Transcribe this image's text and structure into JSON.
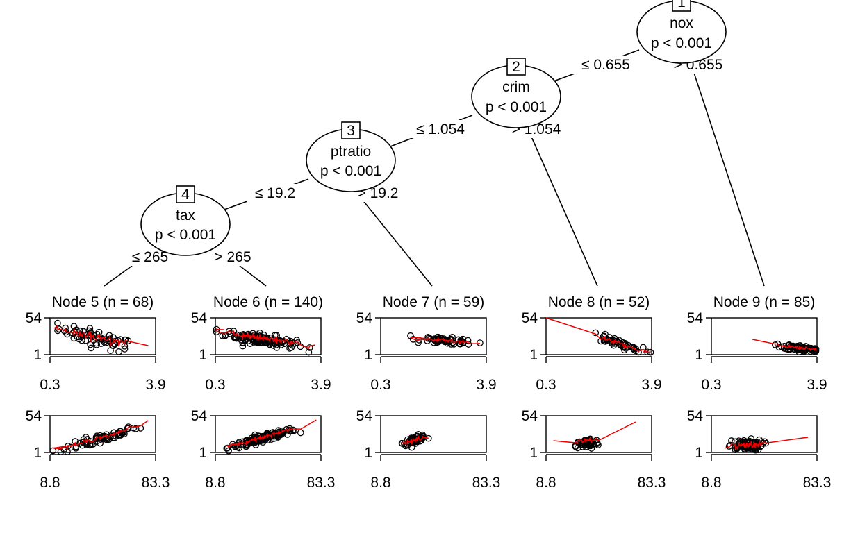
{
  "nodes": [
    {
      "id": "1",
      "variable": "nox",
      "p": "p < 0.001"
    },
    {
      "id": "2",
      "variable": "crim",
      "p": "p < 0.001"
    },
    {
      "id": "3",
      "variable": "ptratio",
      "p": "p < 0.001"
    },
    {
      "id": "4",
      "variable": "tax",
      "p": "p < 0.001"
    }
  ],
  "edges": [
    {
      "le": "≤ 0.655",
      "gt": "> 0.655"
    },
    {
      "le": "≤ 1.054",
      "gt": "> 1.054"
    },
    {
      "le": "≤ 19.2",
      "gt": "> 19.2"
    },
    {
      "le": "≤ 265",
      "gt": "> 265"
    }
  ],
  "chart_data": {
    "type": "scatter",
    "panel_axes": {
      "top": {
        "xlim": [
          0.3,
          3.9
        ],
        "ylim": [
          1,
          54
        ],
        "xticks": [
          "0.3",
          "3.9"
        ],
        "yticks": [
          "54",
          "1"
        ]
      },
      "bottom": {
        "xlim": [
          8.8,
          83.3
        ],
        "ylim": [
          1,
          54
        ],
        "xticks": [
          "8.8",
          "83.3"
        ],
        "yticks": [
          "54",
          "1"
        ]
      }
    },
    "leaves": [
      {
        "title": "Node 5 (n = 68)",
        "top": {
          "cx": 1.9,
          "sx": 0.65,
          "slope": -11.0,
          "icpt": 45,
          "jit": 6,
          "n": 68,
          "fit": [
            [
              0.45,
              39
            ],
            [
              3.65,
              14
            ]
          ]
        },
        "bottom": {
          "cx": 43,
          "sx": 14,
          "slope": 0.62,
          "icpt": -7,
          "jit": 3.5,
          "n": 68,
          "fit": [
            [
              26,
              12
            ],
            [
              78,
              47
            ]
          ]
        }
      },
      {
        "title": "Node 6 (n = 140)",
        "top": {
          "cx": 1.85,
          "sx": 0.6,
          "slope": -6.5,
          "icpt": 35,
          "jit": 4,
          "n": 140,
          "fit": [
            [
              0.6,
              37
            ],
            [
              3.7,
              15
            ]
          ]
        },
        "bottom": {
          "cx": 42,
          "sx": 12,
          "slope": 0.55,
          "icpt": -2,
          "jit": 2.5,
          "n": 140,
          "fit": [
            [
              28,
              15
            ],
            [
              80,
              48
            ]
          ]
        }
      },
      {
        "title": "Node 7 (n = 59)",
        "top": {
          "cx": 2.6,
          "sx": 0.45,
          "slope": -4.0,
          "icpt": 31,
          "jit": 2.5,
          "n": 59,
          "fit": [
            [
              1.9,
              24
            ],
            [
              3.6,
              16
            ]
          ]
        },
        "bottom": {
          "cx": 33,
          "sx": 4,
          "slope": 0.6,
          "icpt": 0,
          "jit": 2.5,
          "n": 59,
          "fit": [
            [
              27,
              16
            ],
            [
              40,
              22
            ]
          ]
        }
      },
      {
        "title": "Node 8 (n = 52)",
        "top": {
          "cx": 2.7,
          "sx": 0.45,
          "slope": -14.0,
          "icpt": 56,
          "jit": 3,
          "n": 52,
          "fit": [
            [
              0.3,
              54
            ],
            [
              3.6,
              5
            ]
          ]
        },
        "bottom": {
          "cx": 38,
          "sx": 4,
          "slope": 0.3,
          "icpt": 2,
          "jit": 4,
          "n": 52,
          "fit": [
            [
              14,
              18
            ],
            [
              47,
              26
            ],
            [
              62,
              50
            ],
            [
              72,
              45
            ]
          ]
        }
      },
      {
        "title": "Node 9 (n = 85)",
        "top": {
          "cx": 3.35,
          "sx": 0.3,
          "slope": -5.0,
          "icpt": 27,
          "jit": 2,
          "n": 85,
          "fit": [
            [
              1.7,
              23
            ],
            [
              3.75,
              9
            ]
          ]
        },
        "bottom": {
          "cx": 33,
          "sx": 6,
          "slope": 0.1,
          "icpt": 8,
          "jit": 4,
          "n": 85,
          "fit": [
            [
              18,
              7
            ],
            [
              77,
              23
            ]
          ]
        }
      }
    ]
  }
}
